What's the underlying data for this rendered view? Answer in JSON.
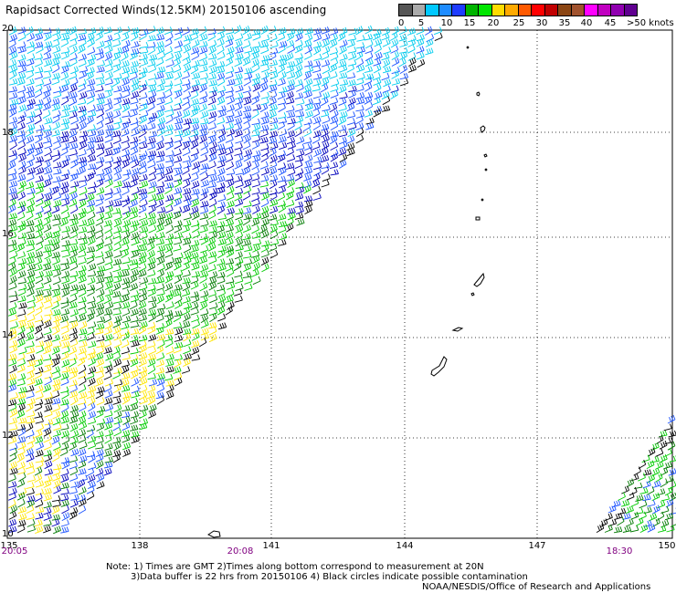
{
  "title": "Rapidsact Corrected Winds(12.5KM) 20150106 ascending",
  "legend": {
    "colors": [
      "#555555",
      "#aaaaaa",
      "#00c8ff",
      "#1e8cff",
      "#1e3cff",
      "#00b400",
      "#00e600",
      "#ffdc00",
      "#ffaa00",
      "#ff5a00",
      "#ff0000",
      "#c00000",
      "#8b4513",
      "#a0522d",
      "#ff00ff",
      "#c000c0",
      "#9000b0",
      "#600090"
    ],
    "labels": [
      "0",
      "5",
      "10",
      "15",
      "20",
      "25",
      "30",
      "35",
      "40",
      "45",
      ">50 knots"
    ]
  },
  "lat_labels": [
    "20",
    "18",
    "16",
    "14",
    "12",
    "10"
  ],
  "lon_labels": [
    "135",
    "138",
    "141",
    "144",
    "147",
    "150"
  ],
  "times": [
    "20:05",
    "20:08",
    "18:30"
  ],
  "notes": [
    "Note: 1) Times are GMT 2)Times along bottom correspond to measurement at 20N",
    "3)Data buffer is 22 hrs from 20150106 4) Black circles indicate possible contamination",
    "NOAA/NESDIS/Office of Research and Applications"
  ],
  "colors": {
    "cyan": "#00ccee",
    "blue": "#1a52ff",
    "navy": "#0000bb",
    "green": "#00cc00",
    "darkgreen": "#007a00",
    "yellow": "#ffe600",
    "black": "#000000",
    "grid": "#000000"
  }
}
